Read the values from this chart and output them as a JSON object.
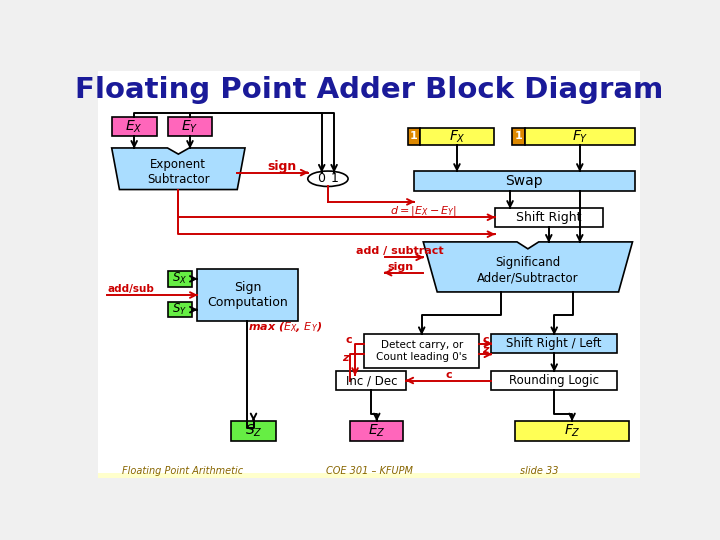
{
  "title": "Floating Point Adder Block Diagram",
  "title_color": "#1a1a99",
  "title_bg": "#c8c8ff",
  "bg_color": "#f0f0f0",
  "slide_bg": "#ffffff",
  "bottom_bg": "#ffffcc",
  "bottom_texts": [
    "Floating Point Arithmetic",
    "COE 301 – KFUPM",
    "slide 33"
  ],
  "colors": {
    "pink": "#ff66bb",
    "light_blue": "#aaddff",
    "yellow": "#ffff55",
    "orange": "#dd8800",
    "green": "#66ee44",
    "red": "#cc0000",
    "black": "#000000",
    "white": "#ffffff",
    "dark_blue": "#0000aa"
  }
}
